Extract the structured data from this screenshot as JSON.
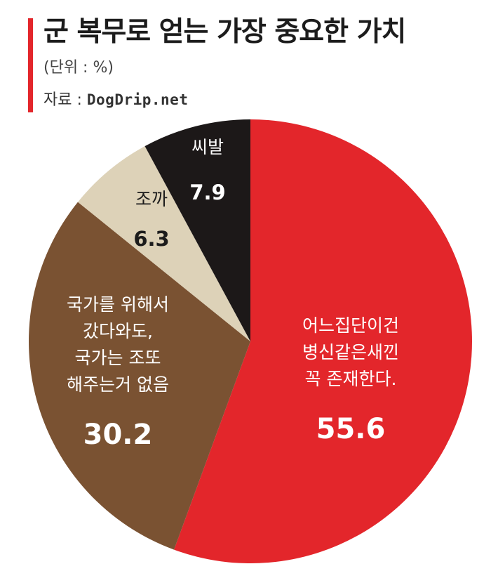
{
  "header": {
    "title": "군 복무로 얻는 가장 중요한 가치",
    "unit": "(단위 : %)",
    "source_label": "자료 :",
    "source_site": "DogDrip.net"
  },
  "colors": {
    "accent": "#e3262b",
    "slice_red": "#e3262b",
    "slice_brown": "#7a5232",
    "slice_beige": "#ddd2b8",
    "slice_black": "#1c1818"
  },
  "chart_data": {
    "type": "pie",
    "title": "군 복무로 얻는 가장 중요한 가치",
    "unit": "%",
    "slices": [
      {
        "label": [
          "어느집단이건",
          "병신같은새낀",
          "꼭 존재한다."
        ],
        "value": 55.6,
        "value_text": "55.6",
        "color": "#e3262b",
        "text_color": "#ffffff"
      },
      {
        "label": [
          "국가를 위해서",
          "갔다와도,",
          "국가는 조또",
          "해주는거 없음"
        ],
        "value": 30.2,
        "value_text": "30.2",
        "color": "#7a5232",
        "text_color": "#ffffff"
      },
      {
        "label": [
          "조까"
        ],
        "value": 6.3,
        "value_text": "6.3",
        "color": "#ddd2b8",
        "text_color": "#1c1c1c"
      },
      {
        "label": [
          "씨발"
        ],
        "value": 7.9,
        "value_text": "7.9",
        "color": "#1c1818",
        "text_color": "#ffffff"
      }
    ]
  }
}
